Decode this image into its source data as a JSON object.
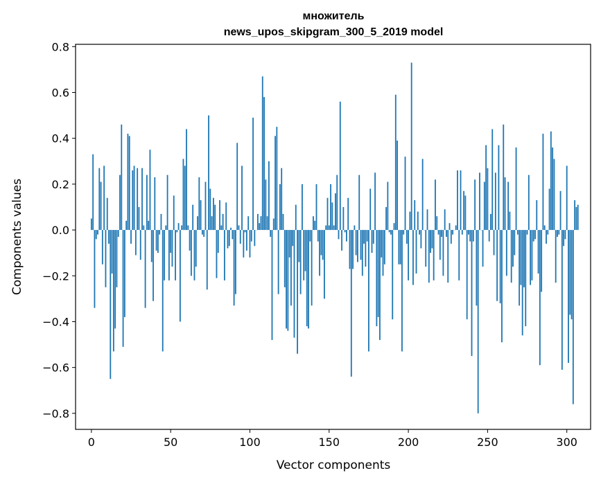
{
  "chart_data": {
    "type": "bar",
    "title_line1": "множитель",
    "title_line2": "news_upos_skipgram_300_5_2019 model",
    "xlabel": "Vector components",
    "ylabel": "Components values",
    "xlim": [
      -10,
      315
    ],
    "ylim": [
      -0.87,
      0.81
    ],
    "xticks": [
      0,
      50,
      100,
      150,
      200,
      250,
      300
    ],
    "yticks": [
      -0.8,
      -0.6,
      -0.4,
      -0.2,
      0.0,
      0.2,
      0.4,
      0.6,
      0.8
    ],
    "xtick_labels": [
      "0",
      "50",
      "100",
      "150",
      "200",
      "250",
      "300"
    ],
    "ytick_labels": [
      "−0.8",
      "−0.6",
      "−0.4",
      "−0.2",
      "0.0",
      "0.2",
      "0.4",
      "0.6",
      "0.8"
    ],
    "bar_color": "#1f77b4",
    "values": [
      0.05,
      0.33,
      -0.34,
      -0.04,
      -0.02,
      0.27,
      0.21,
      -0.15,
      0.28,
      -0.25,
      0.14,
      -0.06,
      -0.65,
      -0.19,
      -0.53,
      -0.43,
      -0.25,
      -0.03,
      0.24,
      0.46,
      -0.51,
      -0.38,
      0.04,
      0.42,
      0.41,
      -0.06,
      0.26,
      0.28,
      -0.11,
      0.27,
      0.1,
      -0.13,
      0.27,
      0.02,
      -0.34,
      0.24,
      0.04,
      0.35,
      -0.14,
      -0.31,
      0.23,
      -0.09,
      -0.1,
      -0.02,
      0.07,
      -0.53,
      -0.22,
      0.02,
      0.24,
      -0.22,
      -0.1,
      -0.16,
      0.15,
      -0.22,
      -0.01,
      0.03,
      -0.4,
      0.02,
      0.31,
      0.28,
      0.44,
      0.02,
      -0.09,
      -0.2,
      0.11,
      -0.22,
      -0.16,
      0.06,
      0.23,
      0.13,
      -0.02,
      -0.03,
      0.21,
      -0.26,
      0.5,
      0.18,
      0.06,
      0.14,
      0.11,
      -0.21,
      -0.1,
      0.13,
      0.02,
      0.07,
      -0.22,
      0.12,
      -0.08,
      -0.07,
      0.01,
      -0.04,
      -0.33,
      -0.28,
      0.38,
      0.02,
      -0.06,
      0.28,
      -0.12,
      -0.01,
      -0.09,
      0.06,
      -0.12,
      -0.05,
      0.49,
      -0.07,
      0.0,
      0.07,
      0.03,
      0.06,
      0.67,
      0.58,
      0.22,
      0.06,
      0.3,
      -0.03,
      -0.48,
      0.05,
      0.41,
      0.45,
      -0.28,
      0.2,
      0.27,
      0.07,
      -0.25,
      -0.43,
      -0.44,
      -0.12,
      -0.33,
      -0.07,
      -0.47,
      0.11,
      -0.54,
      -0.14,
      -0.28,
      0.2,
      -0.22,
      -0.18,
      -0.42,
      -0.43,
      -0.05,
      -0.33,
      0.06,
      0.04,
      0.2,
      -0.05,
      -0.2,
      -0.11,
      -0.13,
      -0.3,
      0.02,
      0.14,
      0.02,
      0.2,
      0.12,
      0.02,
      0.16,
      0.24,
      -0.04,
      0.56,
      -0.09,
      0.1,
      -0.01,
      -0.05,
      0.14,
      -0.17,
      -0.64,
      -0.17,
      0.02,
      -0.11,
      -0.14,
      0.24,
      -0.13,
      -0.2,
      -0.06,
      -0.16,
      -0.05,
      -0.53,
      0.18,
      -0.1,
      -0.06,
      0.25,
      -0.42,
      -0.38,
      -0.48,
      -0.12,
      -0.2,
      -0.15,
      0.1,
      0.21,
      -0.01,
      -0.02,
      -0.39,
      0.03,
      0.59,
      0.39,
      -0.15,
      -0.15,
      -0.53,
      -0.02,
      0.32,
      -0.06,
      -0.22,
      0.08,
      0.73,
      -0.24,
      0.13,
      -0.19,
      0.08,
      -0.02,
      -0.08,
      0.31,
      0.0,
      -0.16,
      0.09,
      -0.23,
      -0.1,
      -0.08,
      -0.22,
      0.22,
      0.06,
      -0.02,
      -0.13,
      -0.03,
      -0.2,
      0.09,
      -0.03,
      -0.23,
      0.03,
      -0.06,
      -0.02,
      0.0,
      0.02,
      0.26,
      -0.22,
      0.26,
      -0.02,
      0.17,
      0.15,
      -0.39,
      -0.02,
      -0.05,
      -0.55,
      -0.05,
      0.22,
      -0.33,
      -0.8,
      0.25,
      0.0,
      -0.16,
      0.21,
      0.37,
      0.27,
      -0.05,
      0.07,
      0.44,
      -0.11,
      0.25,
      -0.31,
      0.37,
      -0.32,
      -0.49,
      0.46,
      0.23,
      -0.2,
      0.21,
      0.08,
      -0.23,
      -0.16,
      -0.11,
      0.36,
      -0.02,
      -0.33,
      -0.24,
      -0.46,
      -0.25,
      -0.42,
      -0.02,
      0.24,
      -0.24,
      -0.22,
      -0.05,
      -0.04,
      0.13,
      -0.19,
      -0.59,
      -0.27,
      0.42,
      0.02,
      -0.06,
      -0.02,
      0.18,
      0.43,
      0.36,
      0.31,
      -0.23,
      -0.03,
      -0.02,
      0.17,
      -0.61,
      -0.07,
      -0.04,
      0.28,
      -0.58,
      -0.37,
      -0.39,
      -0.76,
      0.13,
      0.1,
      0.11
    ]
  }
}
